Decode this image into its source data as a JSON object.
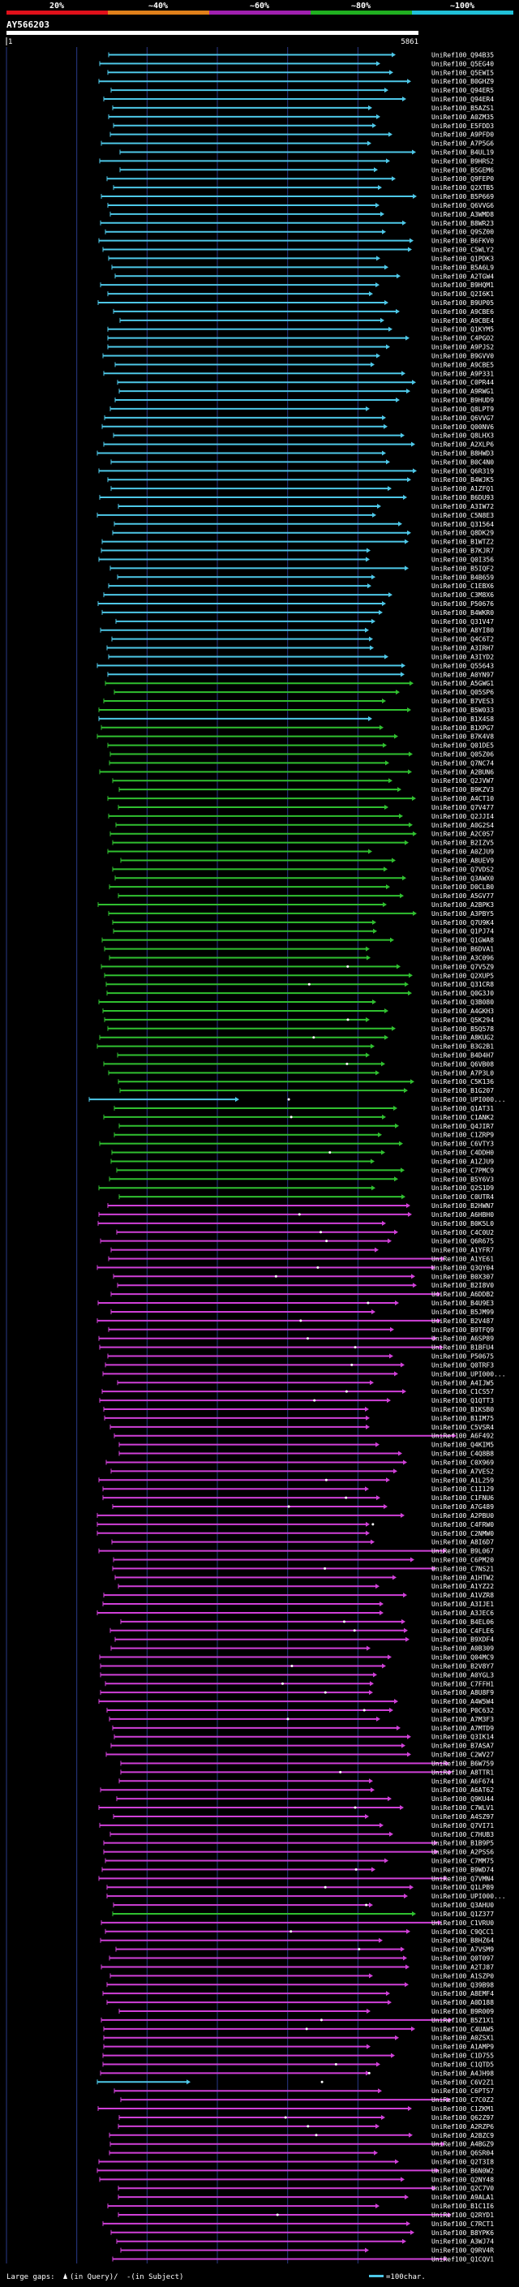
{
  "header": {
    "query_id": "AY566203",
    "start_label": "1",
    "end_label": "5861"
  },
  "identity_scale": {
    "ticks": [
      "20%",
      "~40%",
      "~60%",
      "~80%",
      "~100%"
    ],
    "colors": [
      "#e0101a",
      "#e0801a",
      "#a020b0",
      "#20b020",
      "#20c0d8"
    ]
  },
  "colors": {
    "cyan": "#4ec8e8",
    "green": "#30c030",
    "magenta": "#d040d8",
    "background": "#000000",
    "grid": "#2a3a8a"
  },
  "footer": {
    "gaps_label": "Large gaps:",
    "in_query_label": "(in Query)/",
    "in_subject_label": "-(in Subject)",
    "scale_label": "=100char."
  },
  "chart_data": {
    "type": "alignment",
    "title": "AY566203",
    "query_length": 5861,
    "hits": [
      "UniRef100_Q94B35",
      "UniRef100_Q5EG40",
      "UniRef100_Q5EWI5",
      "UniRef100_B0GHZ9",
      "UniRef100_Q94ER5",
      "UniRef100_Q94ER4",
      "UniRef100_B5AZS1",
      "UniRef100_A0ZM35",
      "UniRef100_E5FDD3",
      "UniRef100_A9PFD0",
      "UniRef100_A7P5G6",
      "UniRef100_B4UL19",
      "UniRef100_B9HRS2",
      "UniRef100_B5GEM6",
      "UniRef100_Q9FEP0",
      "UniRef100_Q2XTB5",
      "UniRef100_B5P669",
      "UniRef100_Q6VVG6",
      "UniRef100_A3WMD8",
      "UniRef100_B8WR23",
      "UniRef100_Q9SZ00",
      "UniRef100_B6FKV0",
      "UniRef100_C5WLY2",
      "UniRef100_Q1PDK3",
      "UniRef100_B5A6L9",
      "UniRef100_A2TGW4",
      "UniRef100_B9HQM1",
      "UniRef100_Q2I6K1",
      "UniRef100_B9UP05",
      "UniRef100_A9CBE6",
      "UniRef100_A9CBE4",
      "UniRef100_Q1KYM5",
      "UniRef100_C4PGO2",
      "UniRef100_A9PJS2",
      "UniRef100_B9GVV0",
      "UniRef100_A9CBE5",
      "UniRef100_A9P331",
      "UniRef100_C0PR44",
      "UniRef100_A9RWG1",
      "UniRef100_B9HUD9",
      "UniRef100_Q8LPT9",
      "UniRef100_Q6VVG7",
      "UniRef100_Q00NV6",
      "UniRef100_Q8LHX3",
      "UniRef100_A2XLP6",
      "UniRef100_B8HWD3",
      "UniRef100_B0C4N0",
      "UniRef100_Q6R319",
      "UniRef100_B4WJK5",
      "UniRef100_A1ZFQ1",
      "UniRef100_B6DU93",
      "UniRef100_A3IW72",
      "UniRef100_C5N8E3",
      "UniRef100_Q31564",
      "UniRef100_Q8DK29",
      "UniRef100_B1WTZ2",
      "UniRef100_B7KJR7",
      "UniRef100_Q0I356",
      "UniRef100_B5IQF2",
      "UniRef100_B4B659",
      "UniRef100_C1EBX6",
      "UniRef100_C3M8X6",
      "UniRef100_P50676",
      "UniRef100_B4WKR0",
      "UniRef100_Q31V47",
      "UniRef100_A8YI80",
      "UniRef100_Q4C6T2",
      "UniRef100_A3IRH7",
      "UniRef100_A3IYD2",
      "UniRef100_Q55643",
      "UniRef100_A0YN97",
      "UniRef100_A5GWG1",
      "UniRef100_Q05SP6",
      "UniRef100_B7VES3",
      "UniRef100_B5W033",
      "UniRef100_B1X4S8",
      "UniRef100_B1XPG7",
      "UniRef100_B7K4V8",
      "UniRef100_Q01DE5",
      "UniRef100_Q05Z06",
      "UniRef100_Q7NC74",
      "UniRef100_A2BUN6",
      "UniRef100_Q2JVW7",
      "UniRef100_B9KZV3",
      "UniRef100_A4CT10",
      "UniRef100_Q7V477",
      "UniRef100_Q2JJI4",
      "UniRef100_A0G2S4",
      "UniRef100_A2C0S7",
      "UniRef100_B2IZV5",
      "UniRef100_A0ZJU9",
      "UniRef100_A8UEV9",
      "UniRef100_Q7VDS2",
      "UniRef100_Q3AWX0",
      "UniRef100_D0CLB0",
      "UniRef100_A5GV77",
      "UniRef100_A2BPK3",
      "UniRef100_A3PBY5",
      "UniRef100_Q7U9K4",
      "UniRef100_Q1PJ74",
      "UniRef100_Q1GWA8",
      "UniRef100_B6DVA1",
      "UniRef100_A3C096",
      "UniRef100_Q7V5Z9",
      "UniRef100_Q2XUP5",
      "UniRef100_Q31CR8",
      "UniRef100_Q0G3J0",
      "UniRef100_Q3B080",
      "UniRef100_A4GKH3",
      "UniRef100_Q5K294",
      "UniRef100_B5Q578",
      "UniRef100_A8KUG2",
      "UniRef100_B3G2B1",
      "UniRef100_B4D4H7",
      "UniRef100_Q6VB08",
      "UniRef100_A7P3L0",
      "UniRef100_C5K136",
      "UniRef100_B1G207",
      "UniRef100_UPI000...",
      "UniRef100_Q1AT31",
      "UniRef100_C1ANK2",
      "UniRef100_Q4JIR7",
      "UniRef100_C1ZRP9",
      "UniRef100_C6VTY3",
      "UniRef100_C4DDH0",
      "UniRef100_A1ZJU9",
      "UniRef100_C7PMC9",
      "UniRef100_B5Y6V3",
      "UniRef100_Q2S1D9",
      "UniRef100_C0UTR4",
      "UniRef100_B2HWN7",
      "UniRef100_A6HBH0",
      "UniRef100_B0K5L0",
      "UniRef100_C4C0U2",
      "UniRef100_Q6R675",
      "UniRef100_A1YFR7",
      "UniRef100_A1YE61",
      "UniRef100_Q3QY04",
      "UniRef100_B0X307",
      "UniRef100_B2I8V0",
      "UniRef100_A6DDB2",
      "UniRef100_B4U9E3",
      "UniRef100_B5JM99",
      "UniRef100_B2V487",
      "UniRef100_B9TFQ9",
      "UniRef100_A6SP89",
      "UniRef100_B1BFU4",
      "UniRef100_P50675",
      "UniRef100_Q0TRF3",
      "UniRef100_UPI000...",
      "UniRef100_A4IJW5",
      "UniRef100_C1CS57",
      "UniRef100_Q1QTT3",
      "UniRef100_B1KSB0",
      "UniRef100_B1IM75",
      "UniRef100_C5VSR4",
      "UniRef100_A6F492",
      "UniRef100_Q4KIM5",
      "UniRef100_C4Q8B8",
      "UniRef100_C0X969",
      "UniRef100_A7VES2",
      "UniRef100_A1L259",
      "UniRef100_C1I129",
      "UniRef100_C1FNU6",
      "UniRef100_A7G489",
      "UniRef100_A2PBU0",
      "UniRef100_C4FRW0",
      "UniRef100_C2NMW0",
      "UniRef100_A8I6D7",
      "UniRef100_B9L067",
      "UniRef100_C6PM20",
      "UniRef100_C7NS21",
      "UniRef100_A1HTW2",
      "UniRef100_A1YZ22",
      "UniRef100_A1VZR8",
      "UniRef100_A3IJE1",
      "UniRef100_A3JEC6",
      "UniRef100_B4EL06",
      "UniRef100_C4FLE6",
      "UniRef100_B9XDF4",
      "UniRef100_A0B309",
      "UniRef100_Q04MC9",
      "UniRef100_B2V8Y7",
      "UniRef100_A0YGL3",
      "UniRef100_C7FFH1",
      "UniRef100_A8U8F9",
      "UniRef100_A4W5W4",
      "UniRef100_P0C632",
      "UniRef100_A7M3F3",
      "UniRef100_A7MTD9",
      "UniRef100_Q3IK14",
      "UniRef100_B7ASA7",
      "UniRef100_C2WV27",
      "UniRef100_B6W759",
      "UniRef100_A8TTR1",
      "UniRef100_A6F674",
      "UniRef100_A6AT62",
      "UniRef100_Q9KU44",
      "UniRef100_C7WLV1",
      "UniRef100_A4SZ97",
      "UniRef100_Q7VI71",
      "UniRef100_C7HUB3",
      "UniRef100_B1B9P5",
      "UniRef100_A2PSS6",
      "UniRef100_C7MM75",
      "UniRef100_B9WD74",
      "UniRef100_Q7VMN4",
      "UniRef100_Q1LPB9",
      "UniRef100_UPI000...",
      "UniRef100_Q3AHU0",
      "UniRef100_Q1Z377",
      "UniRef100_C1VRU0",
      "UniRef100_C9QCC1",
      "UniRef100_B8HZ64",
      "UniRef100_A7VSM9",
      "UniRef100_Q0T097",
      "UniRef100_A2TJ87",
      "UniRef100_A1SZP0",
      "UniRef100_Q39B98",
      "UniRef100_A8EMF4",
      "UniRef100_A0D188",
      "UniRef100_B9R009",
      "UniRef100_B5Z1X1",
      "UniRef100_C4UAW5",
      "UniRef100_A0ZSX1",
      "UniRef100_A1AMP9",
      "UniRef100_C1D755",
      "UniRef100_C1QTD5",
      "UniRef100_A4JH98",
      "UniRef100_C6V2Z1",
      "UniRef100_C6PTS7",
      "UniRef100_C7C0Z2",
      "UniRef100_C1ZKM1",
      "UniRef100_Q62Z97",
      "UniRef100_A2RZP6",
      "UniRef100_A2BZC9",
      "UniRef100_A4BGZ9",
      "UniRef100_Q6SR04",
      "UniRef100_Q2T3I8",
      "UniRef100_B6N0W2",
      "UniRef100_Q2NY48",
      "UniRef100_Q2C7V0",
      "UniRef100_A9ALA1",
      "UniRef100_B1C1I6",
      "UniRef100_Q2RYD1",
      "UniRef100_C7RCT1",
      "UniRef100_B8YPK6",
      "UniRef100_A3WJ74",
      "UniRef100_Q9RV4R",
      "UniRef100_Q1CQV1"
    ]
  }
}
